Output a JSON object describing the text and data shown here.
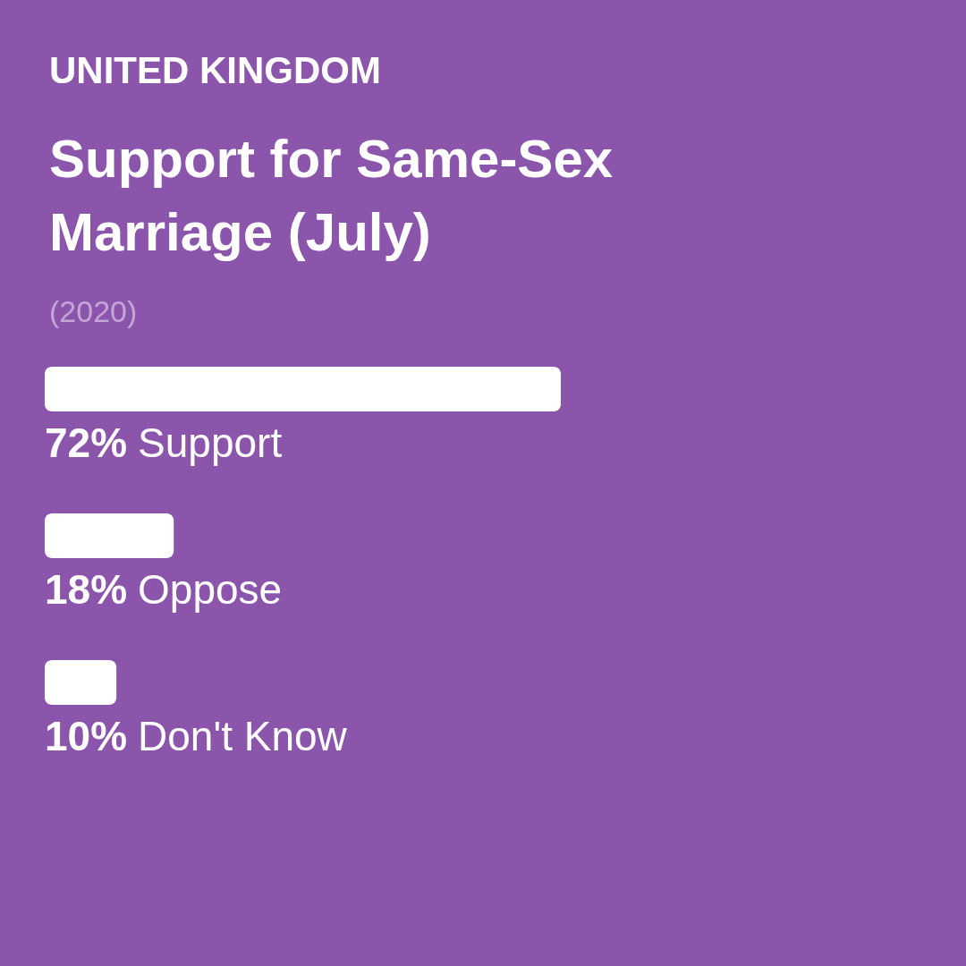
{
  "chart_data": {
    "type": "bar",
    "orientation": "horizontal",
    "subtitle": "UNITED KINGDOM",
    "title": "Support for Same-Sex Marriage (July)",
    "annotations": [
      "(2020)"
    ],
    "categories": [
      "Support",
      "Oppose",
      "Don't Know"
    ],
    "values": [
      72,
      18,
      10
    ],
    "color": "#ffffff",
    "value_labels": [
      "72%",
      "18%",
      "10%"
    ]
  }
}
